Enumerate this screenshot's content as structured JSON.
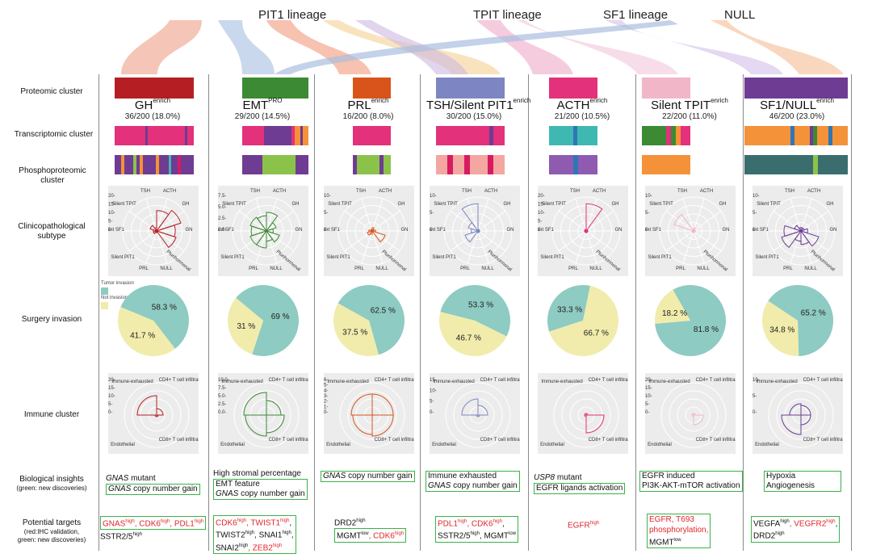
{
  "lineages": [
    "PIT1 lineage",
    "TPIT lineage",
    "SF1 lineage",
    "NULL"
  ],
  "row_labels": {
    "proteomic": "Proteomic cluster",
    "transcriptomic": "Transcriptomic cluster",
    "phospho": "Phosphoproteomic cluster",
    "clinico": "Clinicopathological subtype",
    "surgery": "Surgery invasion",
    "immune": "Immune cluster",
    "insights": "Biological insights",
    "insights_note": "(green: new discoveries)",
    "targets": "Potential targets",
    "targets_note1": "(red:IHC validation,",
    "targets_note2": "green: new discoveries)"
  },
  "legend": {
    "tumor": "Tumor invasion",
    "not": "Not invasion",
    "tumor_color": "#8ecbc2",
    "not_color": "#f1ecac"
  },
  "radar_labels": [
    "TSH",
    "ACTH",
    "Silent TPIT",
    "GH",
    "Silent SF1",
    "GN",
    "Silent PIT1",
    "Plurihormonal",
    "PRL",
    "NULL"
  ],
  "immune_labels": [
    "Immune-exhausted",
    "CD4+ T cell infiltration",
    "Endothelial",
    "CD8+ T cell infiltration"
  ],
  "clusters": [
    {
      "name": "GH",
      "sup": "enrich",
      "count": "36/200 (18.0%)",
      "color": "#b51f24",
      "pie": {
        "tumor": "58.3 %",
        "not": "41.7 %",
        "tumor_frac": 0.583
      },
      "radar_ticks": [
        "20-",
        "15-",
        "10-",
        "5-",
        "0-"
      ],
      "immune_ticks": [
        "20-",
        "15-",
        "10-",
        "5-",
        "0-"
      ]
    },
    {
      "name": "EMT",
      "sup": "PRO",
      "count": "29/200 (14.5%)",
      "color": "#3c8a34",
      "pie": {
        "tumor": "69 %",
        "not": "31 %",
        "tumor_frac": 0.69
      },
      "radar_ticks": [
        "7.5-",
        "5.0-",
        "2.5-",
        "0.0-"
      ],
      "immune_ticks": [
        "10.0-",
        "7.5-",
        "5.0-",
        "2.5-",
        "0.0-"
      ]
    },
    {
      "name": "PRL",
      "sup": "enrich",
      "count": "16/200 (8.0%)",
      "color": "#d9541b",
      "pie": {
        "tumor": "62.5 %",
        "not": "37.5 %",
        "tumor_frac": 0.625
      },
      "radar_ticks": [
        "10-",
        "5-",
        "0-"
      ],
      "immune_ticks": [
        "6-",
        "5-",
        "4-",
        "3-",
        "2-",
        "1-",
        "0-"
      ]
    },
    {
      "name": "TSH/Silent PIT1",
      "sup": "enrich",
      "count": "30/200 (15.0%)",
      "color": "#7d86c2",
      "pie": {
        "tumor": "53.3 %",
        "not": "46.7 %",
        "tumor_frac": 0.533
      },
      "radar_ticks": [
        "10-",
        "5-",
        "0-"
      ],
      "immune_ticks": [
        "15-",
        "10-",
        "5-",
        "0-"
      ]
    },
    {
      "name": "ACTH",
      "sup": "enrich",
      "count": "21/200 (10.5%)",
      "color": "#e3317b",
      "pie": {
        "tumor": "33.3 %",
        "not": "66.7 %",
        "tumor_frac": 0.333
      },
      "radar_ticks": [
        "20-",
        "15-",
        "10-",
        "5-",
        "0-"
      ],
      "immune_ticks": []
    },
    {
      "name": "Silent TPIT",
      "sup": "enrich",
      "count": "22/200 (11.0%)",
      "color": "#f1b6c8",
      "pie": {
        "tumor": "81.8 %",
        "not": "18.2 %",
        "tumor_frac": 0.818
      },
      "radar_ticks": [
        "10-",
        "5-",
        "0-"
      ],
      "immune_ticks": [
        "20-",
        "15-",
        "10-",
        "5-",
        "0-"
      ]
    },
    {
      "name": "SF1/NULL",
      "sup": "enrich",
      "count": "46/200 (23.0%)",
      "color": "#6e3c93",
      "pie": {
        "tumor": "65.2 %",
        "not": "34.8 %",
        "tumor_frac": 0.652
      },
      "radar_ticks": [
        "10-",
        "5-",
        "0-"
      ],
      "immune_ticks": [
        "10-",
        "5-",
        "0-"
      ]
    }
  ],
  "insights": [
    {
      "line1_italic": "GNAS",
      "line1_rest": " mutant",
      "line2_italic": "GNAS",
      "line2_rest": " copy number gain"
    },
    {
      "line1": "High stromal percentage",
      "line2": "EMT feature",
      "line3_italic": "GNAS",
      "line3_rest": " copy number gain"
    },
    {
      "line1_italic": "GNAS",
      "line1_rest": " copy number gain"
    },
    {
      "line1": "Immune exhausted",
      "line2_italic": "GNAS",
      "line2_rest": " copy number gain"
    },
    {
      "line1_italic": "USP8",
      "line1_rest": " mutant",
      "line2": "EGFR ligands activation"
    },
    {
      "line1": "EGFR induced",
      "line2": "PI3K-AKT-mTOR activation"
    },
    {
      "line1": "Hypoxia",
      "line2": "Angiogenesis"
    }
  ],
  "targets": {
    "c1": {
      "a": "GNAS",
      "a_sup": "high",
      "b": ", CDK6",
      "b_sup": "high",
      "c": ", PDL1",
      "c_sup": "high",
      "d": "SSTR2/5",
      "d_sup": "high"
    },
    "c2": {
      "a": "CDK6",
      "a_sup": "high",
      "b": ", TWIST1",
      "b_sup": "high",
      "c": "TWIST2",
      "c_sup": "high",
      "d": ", SNAI1",
      "d_sup": "high",
      "e": "SNAI2",
      "e_sup": "high",
      "f": ", ZEB2",
      "f_sup": "high"
    },
    "c3": {
      "a": "DRD2",
      "a_sup": "high",
      "b": "MGMT",
      "b_sup": "low",
      "c": ", CDK6",
      "c_sup": "high"
    },
    "c4": {
      "a": "PDL1",
      "a_sup": "high",
      "b": ", CDK6",
      "b_sup": "high",
      "c": "SSTR2/5",
      "c_sup": "high",
      "d": ", MGMT",
      "d_sup": "low"
    },
    "c5": {
      "a": "EGFR",
      "a_sup": "high"
    },
    "c6": {
      "a": "EGFR, T693",
      "b": "phosphorylation,",
      "c": "MGMT",
      "c_sup": "low"
    },
    "c7": {
      "a": "VEGFA",
      "a_sup": "high",
      "b": ", VEGFR2",
      "b_sup": "high",
      "c": ",",
      "d": "DRD2",
      "d_sup": "high"
    }
  }
}
